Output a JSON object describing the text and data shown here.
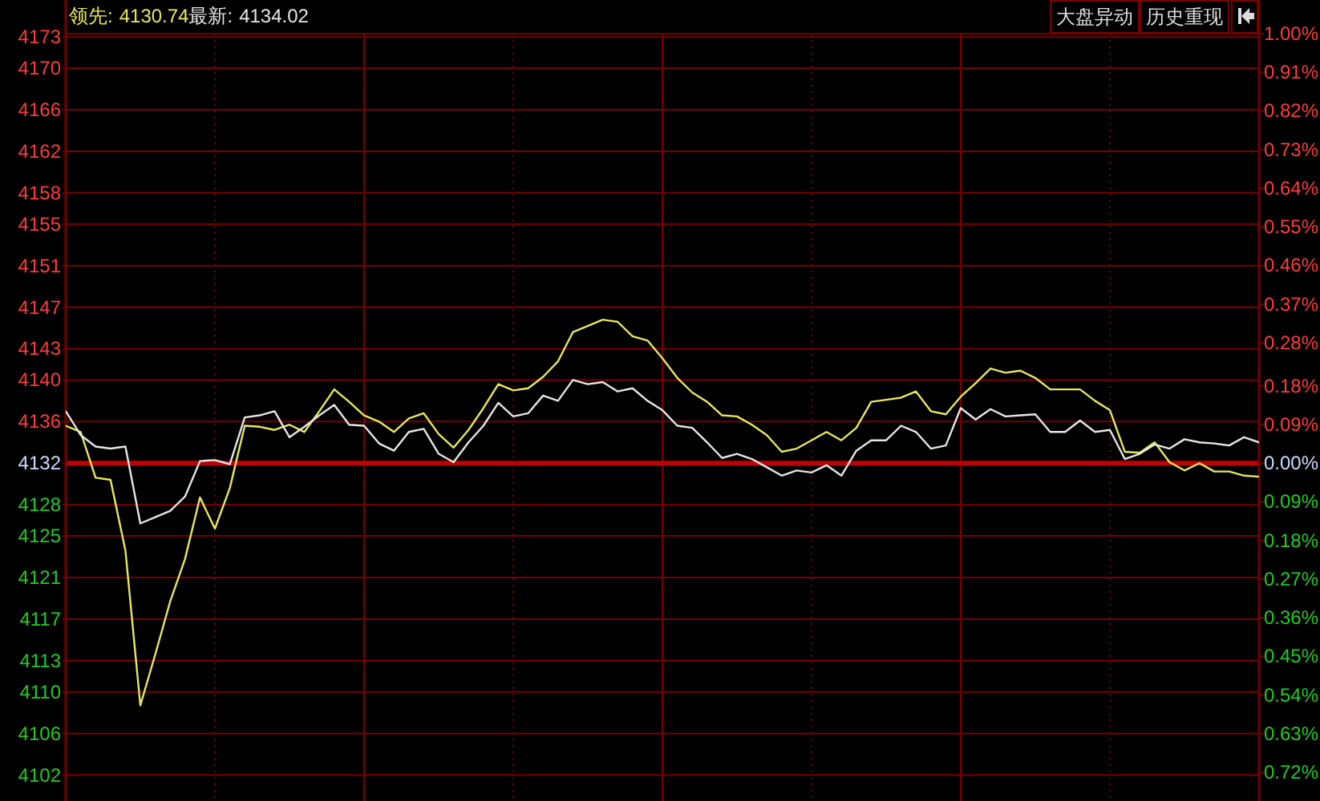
{
  "chart_data": {
    "type": "line",
    "grid": true,
    "tick_labels": "y",
    "categories": [
      null,
      null,
      null,
      null,
      null,
      null,
      null,
      null,
      null,
      null,
      null,
      null,
      null,
      null,
      null,
      null,
      null,
      null,
      null,
      null,
      null,
      null,
      null,
      null,
      null,
      null,
      null,
      null,
      null,
      null,
      null,
      null,
      null,
      null,
      null,
      null,
      null,
      null,
      null,
      null,
      null,
      null,
      null,
      null,
      null,
      null,
      null,
      null,
      null,
      null,
      null,
      null,
      null,
      null,
      null,
      null,
      null,
      null,
      null,
      null,
      null,
      null,
      null,
      null,
      null,
      null,
      null,
      null,
      null,
      null,
      null,
      null,
      null,
      null,
      null,
      null,
      null,
      null,
      null,
      null,
      null
    ],
    "ylim": [
      4099.5,
      4173.32
    ],
    "yticks": [
      4102,
      4106,
      4110,
      4113,
      4117,
      4121,
      4125,
      4128,
      4132,
      4136,
      4140,
      4143,
      4147,
      4151,
      4155,
      4158,
      4162,
      4166,
      4170,
      4173
    ],
    "y2lim": [
      -0.787,
      1.0
    ],
    "y2ticks": [
      {
        "value": -0.72,
        "label": "0.72%"
      },
      {
        "value": -0.63,
        "label": "0.63%"
      },
      {
        "value": -0.54,
        "label": "0.54%"
      },
      {
        "value": -0.45,
        "label": "0.45%"
      },
      {
        "value": -0.36,
        "label": "0.36%"
      },
      {
        "value": -0.27,
        "label": "0.27%"
      },
      {
        "value": -0.18,
        "label": "0.18%"
      },
      {
        "value": -0.09,
        "label": "0.09%"
      },
      {
        "value": 0,
        "label": "0.00%"
      },
      {
        "value": 0.09,
        "label": "0.09%"
      },
      {
        "value": 0.18,
        "label": "0.18%"
      },
      {
        "value": 0.28,
        "label": "0.28%"
      },
      {
        "value": 0.37,
        "label": "0.37%"
      },
      {
        "value": 0.46,
        "label": "0.46%"
      },
      {
        "value": 0.55,
        "label": "0.55%"
      },
      {
        "value": 0.64,
        "label": "0.64%"
      },
      {
        "value": 0.73,
        "label": "0.73%"
      },
      {
        "value": 0.82,
        "label": "0.82%"
      },
      {
        "value": 0.91,
        "label": "0.91%"
      },
      {
        "value": 1.0,
        "label": "1.00%"
      }
    ],
    "ref_lines": [
      {
        "axis": "y",
        "value": 4132,
        "color": "#c00000"
      }
    ],
    "annotations": [
      "4130.74",
      "4134.02",
      "大盘异动",
      "历史重现"
    ],
    "series": [
      {
        "name": "领先:",
        "color": "#e8e85a",
        "values": [
          4135.6,
          4135.0,
          4130.6,
          4130.4,
          4123.6,
          4108.7,
          4113.6,
          4118.7,
          4122.8,
          4128.7,
          4125.7,
          4129.6,
          4135.6,
          4135.5,
          4135.2,
          4135.7,
          4135.0,
          4137.0,
          4139.1,
          4137.9,
          4136.6,
          4136.0,
          4135.0,
          4136.3,
          4136.8,
          4134.8,
          4133.5,
          4135.2,
          4137.3,
          4139.6,
          4139.0,
          4139.2,
          4140.3,
          4141.8,
          4144.6,
          4145.2,
          4145.8,
          4145.6,
          4144.2,
          4143.8,
          4142.1,
          4140.2,
          4138.8,
          4137.9,
          4136.6,
          4136.5,
          4135.7,
          4134.7,
          4133.1,
          4133.4,
          4134.2,
          4135.0,
          4134.2,
          4135.4,
          4137.9,
          4138.1,
          4138.3,
          4138.9,
          4137.0,
          4136.7,
          4138.4,
          4139.7,
          4141.1,
          4140.7,
          4140.9,
          4140.2,
          4139.1,
          4139.1,
          4139.1,
          4138.0,
          4137.1,
          4133.1,
          4133.0,
          4134.0,
          4132.1,
          4131.3,
          4132.0,
          4131.2,
          4131.2,
          4130.8,
          4130.7
        ]
      },
      {
        "name": "最新:",
        "color": "#e6e6e6",
        "values": [
          4137.0,
          4134.7,
          4133.6,
          4133.4,
          4133.6,
          4126.2,
          4126.8,
          4127.4,
          4128.8,
          4132.2,
          4132.3,
          4131.9,
          4136.4,
          4136.6,
          4137.0,
          4134.5,
          4135.5,
          4136.6,
          4137.6,
          4135.7,
          4135.6,
          4133.9,
          4133.2,
          4135.0,
          4135.3,
          4132.9,
          4132.1,
          4134.0,
          4135.6,
          4137.8,
          4136.5,
          4136.8,
          4138.5,
          4138.0,
          4140.0,
          4139.6,
          4139.8,
          4138.9,
          4139.2,
          4138.0,
          4137.1,
          4135.6,
          4135.4,
          4134.0,
          4132.5,
          4132.9,
          4132.4,
          4131.6,
          4130.8,
          4131.3,
          4131.1,
          4131.8,
          4130.8,
          4133.2,
          4134.2,
          4134.2,
          4135.6,
          4135.0,
          4133.4,
          4133.7,
          4137.3,
          4136.2,
          4137.2,
          4136.5,
          4136.6,
          4136.7,
          4135.0,
          4135.0,
          4136.1,
          4135.0,
          4135.2,
          4132.4,
          4132.9,
          4133.8,
          4133.4,
          4134.3,
          4134.0,
          4133.9,
          4133.7,
          4134.5,
          4134.0
        ]
      }
    ]
  }
}
